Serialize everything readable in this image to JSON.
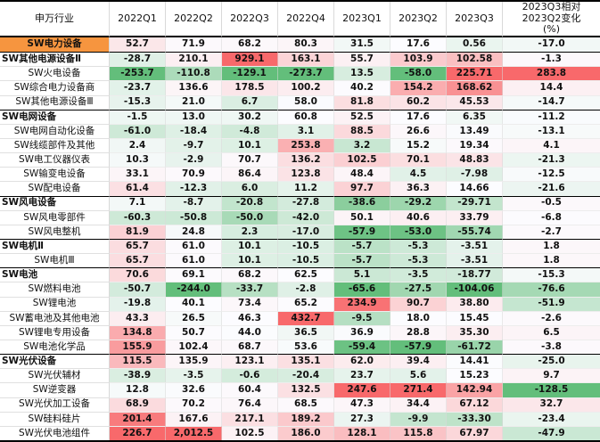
{
  "chart_data": {
    "type": "table",
    "title": "",
    "columns": [
      "申万行业",
      "2022Q1",
      "2022Q2",
      "2022Q3",
      "2022Q4",
      "2023Q1",
      "2023Q2",
      "2023Q3",
      "2023Q3相对2023Q2变化(%)"
    ],
    "header": {
      "industry_label": "申万行业",
      "quarter_labels": [
        "2022Q1",
        "2022Q2",
        "2022Q3",
        "2022Q4",
        "2023Q1",
        "2023Q2",
        "2023Q3"
      ],
      "change_label_multiline": "2023Q3相对\n2023Q2变化\n(%)"
    },
    "rows": [
      {
        "label": "SW电力设备",
        "level": "total",
        "values": [
          "52.7",
          "71.9",
          "68.2",
          "80.3",
          "31.5",
          "17.6",
          "0.56",
          "-17.0"
        ]
      },
      {
        "label": "SW其他电源设备Ⅱ",
        "level": "category",
        "values": [
          "-28.7",
          "210.1",
          "929.1",
          "163.1",
          "55.7",
          "103.9",
          "102.58",
          "-1.3"
        ]
      },
      {
        "label": "SW火电设备",
        "level": "sub",
        "values": [
          "-253.7",
          "-110.8",
          "-129.1",
          "-273.7",
          "13.5",
          "-58.0",
          "225.71",
          "283.8"
        ]
      },
      {
        "label": "SW综合电力设备商",
        "level": "sub",
        "values": [
          "-23.7",
          "136.6",
          "178.5",
          "100.2",
          "40.2",
          "154.2",
          "168.62",
          "14.4"
        ]
      },
      {
        "label": "SW其他电源设备Ⅲ",
        "level": "sub",
        "values": [
          "-15.3",
          "21.0",
          "6.7",
          "58.0",
          "81.8",
          "60.2",
          "45.53",
          "-14.7"
        ]
      },
      {
        "label": "SW电网设备",
        "level": "category",
        "values": [
          "-1.5",
          "13.0",
          "30.2",
          "60.8",
          "52.5",
          "17.6",
          "6.35",
          "-11.2"
        ]
      },
      {
        "label": "SW电网自动化设备",
        "level": "sub",
        "values": [
          "-61.0",
          "-18.4",
          "-4.8",
          "3.1",
          "88.5",
          "26.6",
          "13.49",
          "-13.1"
        ]
      },
      {
        "label": "SW线缆部件及其他",
        "level": "sub",
        "values": [
          "2.4",
          "-9.7",
          "10.1",
          "253.8",
          "3.2",
          "15.2",
          "19.34",
          "4.1"
        ]
      },
      {
        "label": "SW电工仪器仪表",
        "level": "sub",
        "values": [
          "10.3",
          "-2.9",
          "70.7",
          "136.2",
          "102.5",
          "70.1",
          "48.83",
          "-21.3"
        ]
      },
      {
        "label": "SW输变电设备",
        "level": "sub",
        "values": [
          "33.1",
          "70.9",
          "86.4",
          "123.8",
          "48.4",
          "4.5",
          "-7.98",
          "-12.5"
        ]
      },
      {
        "label": "SW配电设备",
        "level": "sub",
        "values": [
          "61.4",
          "-12.3",
          "6.0",
          "11.2",
          "97.7",
          "36.3",
          "14.66",
          "-21.6"
        ]
      },
      {
        "label": "SW风电设备",
        "level": "category",
        "values": [
          "7.1",
          "-8.7",
          "-20.8",
          "-27.8",
          "-38.6",
          "-29.2",
          "-29.71",
          "-0.5"
        ]
      },
      {
        "label": "SW风电零部件",
        "level": "sub",
        "values": [
          "-60.3",
          "-50.8",
          "-50.0",
          "-42.0",
          "50.1",
          "40.6",
          "33.79",
          "-6.8"
        ]
      },
      {
        "label": "SW风电整机",
        "level": "sub",
        "values": [
          "81.9",
          "24.8",
          "2.3",
          "-17.0",
          "-57.9",
          "-53.0",
          "-55.74",
          "-2.7"
        ]
      },
      {
        "label": "SW电机Ⅱ",
        "level": "category",
        "values": [
          "65.7",
          "61.0",
          "10.1",
          "-10.5",
          "-5.7",
          "-5.3",
          "-3.51",
          "1.8"
        ]
      },
      {
        "label": "SW电机Ⅲ",
        "level": "sub",
        "values": [
          "65.7",
          "61.0",
          "10.1",
          "-10.5",
          "-5.7",
          "-5.3",
          "-3.51",
          "1.8"
        ]
      },
      {
        "label": "SW电池",
        "level": "category",
        "values": [
          "70.6",
          "69.1",
          "68.2",
          "62.5",
          "5.1",
          "-3.5",
          "-18.77",
          "-15.3"
        ]
      },
      {
        "label": "SW燃料电池",
        "level": "sub",
        "values": [
          "-50.7",
          "-244.0",
          "-33.7",
          "-2.8",
          "-65.6",
          "-27.5",
          "-104.06",
          "-76.6"
        ]
      },
      {
        "label": "SW锂电池",
        "level": "sub",
        "values": [
          "-19.8",
          "40.1",
          "73.4",
          "65.2",
          "234.9",
          "90.7",
          "38.80",
          "-51.9"
        ]
      },
      {
        "label": "SW蓄电池及其他电池",
        "level": "sub",
        "values": [
          "43.3",
          "26.5",
          "46.3",
          "432.7",
          "-9.5",
          "18.0",
          "15.45",
          "-2.6"
        ]
      },
      {
        "label": "SW锂电专用设备",
        "level": "sub",
        "values": [
          "134.8",
          "50.7",
          "44.0",
          "36.5",
          "36.9",
          "28.8",
          "35.30",
          "6.5"
        ]
      },
      {
        "label": "SW电池化学品",
        "level": "sub",
        "values": [
          "155.9",
          "102.4",
          "68.7",
          "53.6",
          "-59.4",
          "-57.9",
          "-61.72",
          "-3.8"
        ]
      },
      {
        "label": "SW光伏设备",
        "level": "category",
        "values": [
          "115.5",
          "135.9",
          "123.1",
          "135.1",
          "62.0",
          "39.4",
          "14.41",
          "-25.0"
        ]
      },
      {
        "label": "SW光伏辅材",
        "level": "sub",
        "values": [
          "-38.9",
          "-3.5",
          "-0.6",
          "-20.4",
          "23.7",
          "5.6",
          "15.23",
          "9.7"
        ]
      },
      {
        "label": "SW逆变器",
        "level": "sub",
        "values": [
          "12.8",
          "32.6",
          "60.4",
          "132.5",
          "247.6",
          "271.4",
          "142.94",
          "-128.5"
        ]
      },
      {
        "label": "SW光伏加工设备",
        "level": "sub",
        "values": [
          "68.9",
          "70.2",
          "76.4",
          "68.5",
          "47.3",
          "34.4",
          "67.12",
          "32.7"
        ]
      },
      {
        "label": "SW硅料硅片",
        "level": "sub",
        "values": [
          "201.4",
          "167.6",
          "217.1",
          "189.2",
          "27.3",
          "-9.9",
          "-33.30",
          "-23.4"
        ]
      },
      {
        "label": "SW光伏电池组件",
        "level": "sub",
        "values": [
          "226.7",
          "2,012.5",
          "102.5",
          "186.0",
          "128.1",
          "115.8",
          "67.97",
          "-47.9"
        ]
      }
    ],
    "layout_hints": {
      "heatmap": "per-column 3-color scale, min to median to max",
      "heat_min_color": "#63BE7B",
      "heat_mid_color": "#FCFCFF",
      "heat_max_color": "#F8696B",
      "total_row_label_fill": "#F6953F",
      "grid_line_color": "#D9D9D9",
      "section_line_color": "#000000"
    }
  }
}
